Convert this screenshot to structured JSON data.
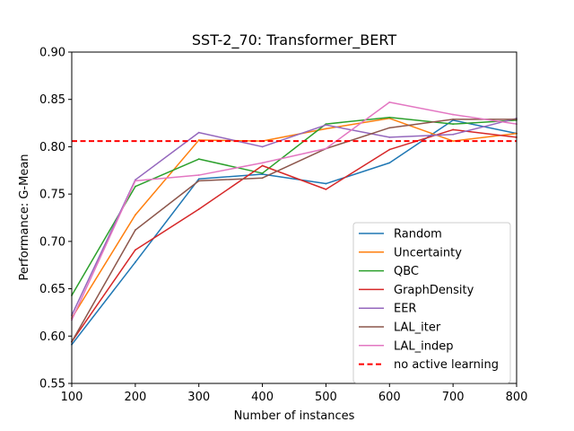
{
  "chart_data": {
    "type": "line",
    "title": "SST-2_70: Transformer_BERT",
    "xlabel": "Number of instances",
    "ylabel": "Performance: G-Mean",
    "xlim": [
      100,
      800
    ],
    "ylim": [
      0.55,
      0.9
    ],
    "xticks": [
      "100",
      "200",
      "300",
      "400",
      "500",
      "600",
      "700",
      "800"
    ],
    "yticks": [
      "0.55",
      "0.60",
      "0.65",
      "0.70",
      "0.75",
      "0.80",
      "0.85",
      "0.90"
    ],
    "grid": false,
    "legend_position": "lower-right",
    "x": [
      100,
      200,
      300,
      400,
      500,
      600,
      700,
      800
    ],
    "series": [
      {
        "name": "Random",
        "color": "#1f77b4",
        "values": [
          0.591,
          0.678,
          0.766,
          0.771,
          0.761,
          0.783,
          0.828,
          0.814
        ]
      },
      {
        "name": "Uncertainty",
        "color": "#ff7f0e",
        "values": [
          0.619,
          0.728,
          0.807,
          0.806,
          0.819,
          0.83,
          0.806,
          0.814
        ]
      },
      {
        "name": "QBC",
        "color": "#2ca02c",
        "values": [
          0.643,
          0.758,
          0.787,
          0.772,
          0.824,
          0.831,
          0.824,
          0.828
        ]
      },
      {
        "name": "GraphDensity",
        "color": "#d62728",
        "values": [
          0.594,
          0.691,
          0.734,
          0.78,
          0.755,
          0.797,
          0.818,
          0.81
        ]
      },
      {
        "name": "EER",
        "color": "#9467bd",
        "values": [
          0.622,
          0.765,
          0.815,
          0.8,
          0.823,
          0.81,
          0.813,
          0.83
        ]
      },
      {
        "name": "LAL_iter",
        "color": "#8c564b",
        "values": [
          0.594,
          0.712,
          0.764,
          0.767,
          0.798,
          0.82,
          0.829,
          0.829
        ]
      },
      {
        "name": "LAL_indep",
        "color": "#e377c2",
        "values": [
          0.617,
          0.764,
          0.77,
          0.783,
          0.798,
          0.847,
          0.834,
          0.824
        ]
      }
    ],
    "reference_line": {
      "name": "no active learning",
      "color": "#ff0000",
      "value": 0.806,
      "style": "dashed"
    }
  }
}
